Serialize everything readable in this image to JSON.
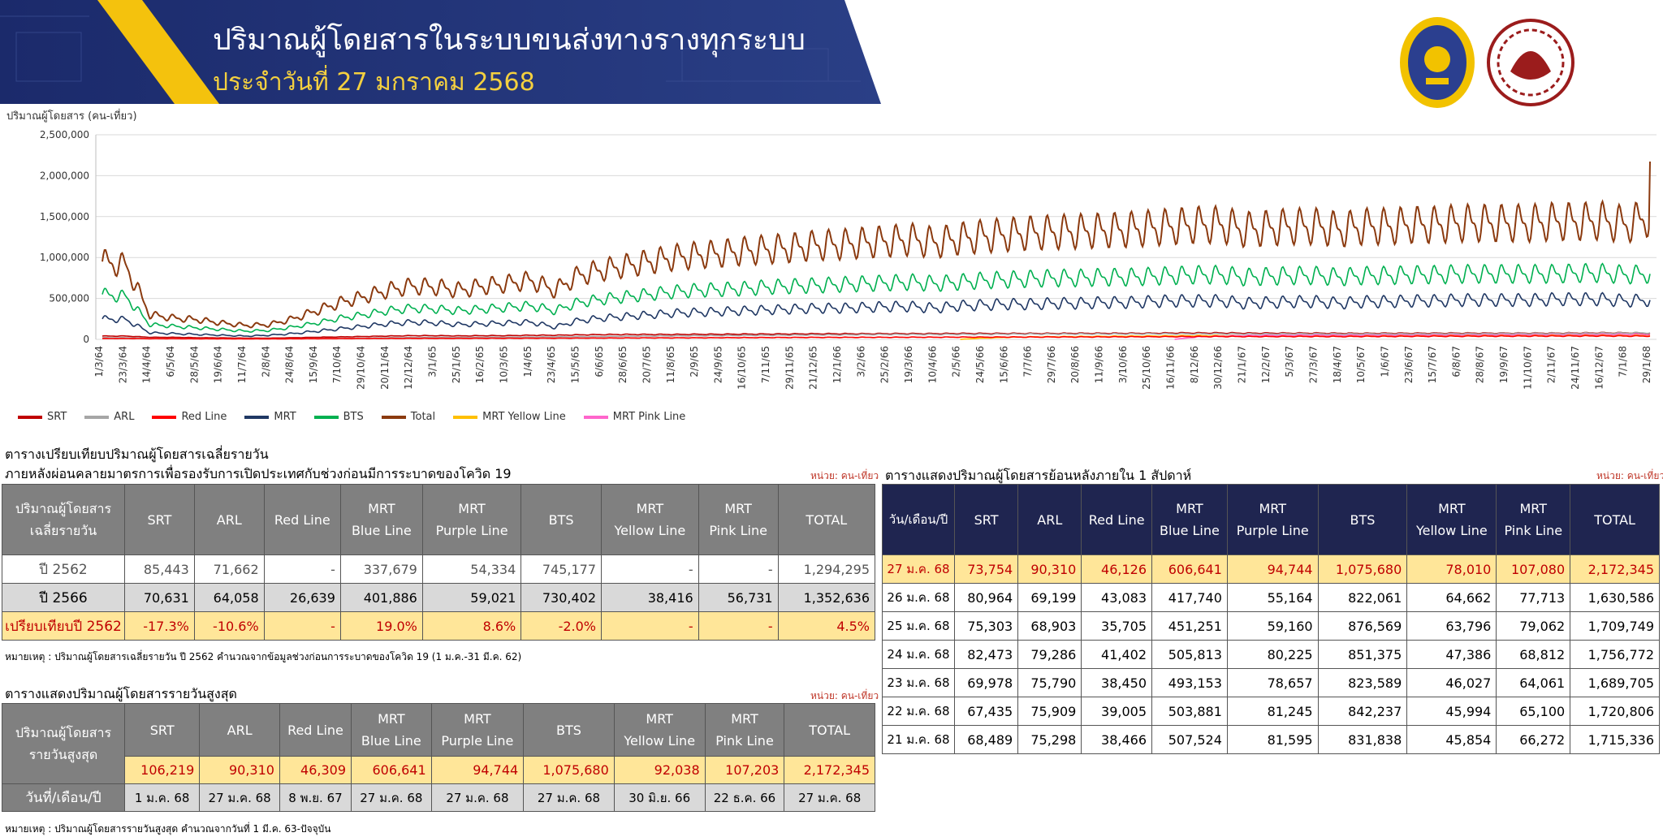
{
  "header": {
    "title": "ปริมาณผู้โดยสารในระบบขนส่งทางรางทุกระบบ",
    "subtitle": "ประจำวันที่ 27 มกราคม 2568"
  },
  "chart_data": {
    "type": "line",
    "ylabel": "ปริมาณผู้โดยสาร (คน-เที่ยว)",
    "ylim": [
      0,
      2500000
    ],
    "yticks": [
      "0",
      "500,000",
      "1,000,000",
      "1,500,000",
      "2,000,000",
      "2,500,000"
    ],
    "x": [
      "1/3/64",
      "23/3/64",
      "14/4/64",
      "6/5/64",
      "28/5/64",
      "19/6/64",
      "11/7/64",
      "2/8/64",
      "24/8/64",
      "15/9/64",
      "7/10/64",
      "29/10/64",
      "20/11/64",
      "12/12/64",
      "3/1/65",
      "25/1/65",
      "16/2/65",
      "10/3/65",
      "1/4/65",
      "23/4/65",
      "15/5/65",
      "6/6/65",
      "28/6/65",
      "20/7/65",
      "11/8/65",
      "2/9/65",
      "24/9/65",
      "16/10/65",
      "7/11/65",
      "29/11/65",
      "21/12/65",
      "12/1/66",
      "3/2/66",
      "25/2/66",
      "19/3/66",
      "10/4/66",
      "2/5/66",
      "24/5/66",
      "15/6/66",
      "7/7/66",
      "29/7/66",
      "20/8/66",
      "11/9/66",
      "3/10/66",
      "25/10/66",
      "16/11/66",
      "8/12/66",
      "30/12/66",
      "21/1/67",
      "12/2/67",
      "5/3/67",
      "27/3/67",
      "18/4/67",
      "10/5/67",
      "1/6/67",
      "23/6/67",
      "15/7/67",
      "6/8/67",
      "28/8/67",
      "19/9/67",
      "11/10/67",
      "2/11/67",
      "24/11/67",
      "16/12/67",
      "7/1/68",
      "29/1/68"
    ],
    "series": [
      {
        "name": "SRT",
        "color": "#c00000",
        "level": [
          40000,
          40000,
          25000,
          25000,
          20000,
          18000,
          15000,
          15000,
          20000,
          25000,
          30000,
          35000,
          40000,
          45000,
          45000,
          42000,
          45000,
          45000,
          50000,
          50000,
          55000,
          58000,
          60000,
          60000,
          60000,
          62000,
          62000,
          64000,
          65000,
          66000,
          68000,
          68000,
          68000,
          70000,
          70000,
          70000,
          72000,
          72000,
          72000,
          72000,
          72000,
          74000,
          74000,
          74000,
          75000,
          78000,
          78000,
          78000,
          76000,
          76000,
          76000,
          76000,
          74000,
          74000,
          75000,
          75000,
          76000,
          76000,
          76000,
          76000,
          76000,
          76000,
          78000,
          80000,
          80000,
          75000
        ],
        "amp": 0.12
      },
      {
        "name": "ARL",
        "color": "#a6a6a6",
        "level": [
          20000,
          20000,
          12000,
          10000,
          9000,
          8000,
          7000,
          7000,
          8000,
          10000,
          12000,
          15000,
          20000,
          22000,
          24000,
          22000,
          25000,
          25000,
          28000,
          30000,
          32000,
          35000,
          38000,
          40000,
          42000,
          44000,
          46000,
          48000,
          50000,
          52000,
          55000,
          55000,
          58000,
          60000,
          60000,
          60000,
          62000,
          62000,
          64000,
          65000,
          65000,
          66000,
          66000,
          66000,
          68000,
          68000,
          68000,
          68000,
          66000,
          66000,
          68000,
          68000,
          66000,
          68000,
          68000,
          68000,
          70000,
          70000,
          70000,
          72000,
          72000,
          72000,
          74000,
          76000,
          78000,
          80000
        ],
        "amp": 0.15
      },
      {
        "name": "Red Line",
        "color": "#ff0000",
        "level": [
          10000,
          10000,
          8000,
          8000,
          7000,
          7000,
          6000,
          6000,
          7000,
          8000,
          9000,
          10000,
          11000,
          12000,
          12000,
          12000,
          13000,
          13000,
          14000,
          14000,
          15000,
          16000,
          17000,
          18000,
          18000,
          19000,
          20000,
          21000,
          22000,
          23000,
          24000,
          24000,
          25000,
          25000,
          26000,
          26000,
          27000,
          27000,
          28000,
          28000,
          29000,
          29000,
          30000,
          31000,
          32000,
          33000,
          34000,
          35000,
          34000,
          34000,
          35000,
          35000,
          34000,
          36000,
          36000,
          37000,
          38000,
          38000,
          39000,
          39000,
          40000,
          40000,
          41000,
          42000,
          40000,
          40000
        ],
        "amp": 0.2
      },
      {
        "name": "MRT",
        "color": "#203864",
        "level": [
          250000,
          240000,
          80000,
          70000,
          60000,
          50000,
          40000,
          50000,
          70000,
          100000,
          130000,
          160000,
          190000,
          210000,
          200000,
          180000,
          190000,
          200000,
          210000,
          150000,
          230000,
          260000,
          280000,
          300000,
          320000,
          330000,
          340000,
          350000,
          360000,
          370000,
          380000,
          380000,
          390000,
          400000,
          400000,
          380000,
          410000,
          420000,
          430000,
          430000,
          440000,
          440000,
          450000,
          450000,
          460000,
          470000,
          470000,
          470000,
          440000,
          450000,
          460000,
          460000,
          440000,
          460000,
          460000,
          470000,
          470000,
          480000,
          480000,
          480000,
          480000,
          490000,
          490000,
          490000,
          470000,
          480000
        ],
        "amp": 0.25
      },
      {
        "name": "BTS",
        "color": "#00b050",
        "level": [
          550000,
          520000,
          180000,
          160000,
          140000,
          120000,
          100000,
          110000,
          150000,
          200000,
          260000,
          300000,
          350000,
          380000,
          370000,
          350000,
          370000,
          390000,
          410000,
          350000,
          450000,
          490000,
          520000,
          550000,
          580000,
          600000,
          610000,
          620000,
          640000,
          650000,
          660000,
          670000,
          680000,
          690000,
          700000,
          680000,
          700000,
          720000,
          730000,
          740000,
          750000,
          750000,
          760000,
          760000,
          770000,
          780000,
          790000,
          790000,
          760000,
          770000,
          780000,
          780000,
          760000,
          780000,
          780000,
          790000,
          790000,
          800000,
          800000,
          800000,
          800000,
          800000,
          810000,
          810000,
          790000,
          800000
        ],
        "amp": 0.22
      },
      {
        "name": "Total",
        "color": "#8b3a0f",
        "level": [
          950000,
          900000,
          300000,
          260000,
          240000,
          200000,
          170000,
          180000,
          250000,
          350000,
          450000,
          520000,
          600000,
          650000,
          640000,
          600000,
          650000,
          680000,
          720000,
          600000,
          780000,
          850000,
          900000,
          950000,
          1000000,
          1030000,
          1050000,
          1080000,
          1100000,
          1120000,
          1150000,
          1160000,
          1180000,
          1200000,
          1220000,
          1180000,
          1230000,
          1260000,
          1280000,
          1300000,
          1310000,
          1320000,
          1330000,
          1340000,
          1360000,
          1380000,
          1400000,
          1400000,
          1340000,
          1360000,
          1380000,
          1380000,
          1340000,
          1380000,
          1380000,
          1400000,
          1400000,
          1420000,
          1420000,
          1420000,
          1420000,
          1440000,
          1440000,
          1450000,
          1400000,
          1500000
        ],
        "amp": 0.25
      },
      {
        "name": "MRT Yellow Line",
        "color": "#ffc000",
        "level": [
          0,
          0,
          0,
          0,
          0,
          0,
          0,
          0,
          0,
          0,
          0,
          0,
          0,
          0,
          0,
          0,
          0,
          0,
          0,
          0,
          0,
          0,
          0,
          0,
          0,
          0,
          0,
          0,
          0,
          0,
          0,
          0,
          0,
          0,
          0,
          0,
          0,
          15000,
          25000,
          30000,
          32000,
          34000,
          36000,
          38000,
          40000,
          42000,
          44000,
          45000,
          43000,
          44000,
          45000,
          45000,
          43000,
          45000,
          46000,
          46000,
          47000,
          47000,
          48000,
          48000,
          48000,
          49000,
          50000,
          50000,
          48000,
          50000
        ],
        "amp": 0.2
      },
      {
        "name": "MRT Pink Line",
        "color": "#ff66cc",
        "level": [
          0,
          0,
          0,
          0,
          0,
          0,
          0,
          0,
          0,
          0,
          0,
          0,
          0,
          0,
          0,
          0,
          0,
          0,
          0,
          0,
          0,
          0,
          0,
          0,
          0,
          0,
          0,
          0,
          0,
          0,
          0,
          0,
          0,
          0,
          0,
          0,
          0,
          0,
          0,
          0,
          0,
          0,
          0,
          0,
          0,
          0,
          30000,
          40000,
          45000,
          48000,
          50000,
          52000,
          50000,
          53000,
          54000,
          55000,
          56000,
          57000,
          58000,
          58000,
          59000,
          60000,
          61000,
          62000,
          60000,
          62000
        ],
        "amp": 0.2
      }
    ]
  },
  "compare": {
    "title1": "ตารางเปรียบเทียบปริมาณผู้โดยสารเฉลี่ยรายวัน",
    "title2": "ภายหลังผ่อนคลายมาตรการเพื่อรองรับการเปิดประเทศกับช่วงก่อนมีการระบาดของโควิด 19",
    "unit": "หน่วย: คน-เที่ยว",
    "corner": [
      "ปริมาณผู้โดยสาร",
      "เฉลี่ยรายวัน"
    ],
    "headers": [
      [
        "SRT"
      ],
      [
        "ARL"
      ],
      [
        "Red Line"
      ],
      [
        "MRT",
        "Blue Line"
      ],
      [
        "MRT",
        "Purple Line"
      ],
      [
        "BTS"
      ],
      [
        "MRT",
        "Yellow Line"
      ],
      [
        "MRT",
        "Pink Line"
      ],
      [
        "TOTAL"
      ]
    ],
    "rows": [
      {
        "label": "ปี 2562",
        "values": [
          "85,443",
          "71,662",
          "-",
          "337,679",
          "54,334",
          "745,177",
          "-",
          "-",
          "1,294,295"
        ]
      },
      {
        "label": "ปี 2566",
        "values": [
          "70,631",
          "64,058",
          "26,639",
          "401,886",
          "59,021",
          "730,402",
          "38,416",
          "56,731",
          "1,352,636"
        ]
      },
      {
        "label": "เปรียบเทียบปี 2562",
        "values": [
          "-17.3%",
          "-10.6%",
          "-",
          "19.0%",
          "8.6%",
          "-2.0%",
          "-",
          "-",
          "4.5%"
        ]
      }
    ],
    "note": "หมายเหตุ : ปริมาณผู้โดยสารเฉลี่ยรายวัน ปี 2562 คำนวณจากข้อมูลช่วงก่อนการระบาดของโควิด 19 (1 ม.ค.-31 มี.ค. 62)"
  },
  "max": {
    "title": "ตารางแสดงปริมาณผู้โดยสารรายวันสูงสุด",
    "unit": "หน่วย: คน-เที่ยว",
    "corner": [
      "ปริมาณผู้โดยสาร",
      "รายวันสูงสุด"
    ],
    "values": [
      "106,219",
      "90,310",
      "46,309",
      "606,641",
      "94,744",
      "1,075,680",
      "92,038",
      "107,203",
      "2,172,345"
    ],
    "date_label": "วันที่/เดือน/ปี",
    "dates": [
      "1 ม.ค. 68",
      "27 ม.ค. 68",
      "8 พ.ย. 67",
      "27 ม.ค. 68",
      "27 ม.ค. 68",
      "27 ม.ค. 68",
      "30 มิ.ย. 66",
      "22 ธ.ค. 66",
      "27 ม.ค. 68"
    ],
    "note": "หมายเหตุ : ปริมาณผู้โดยสารรายวันสูงสุด คำนวณจากวันที่ 1 มี.ค. 63-ปัจจุบัน"
  },
  "week": {
    "title": "ตารางแสดงปริมาณผู้โดยสารย้อนหลังภายใน 1 สัปดาห์",
    "unit": "หน่วย: คน-เที่ยว",
    "corner": "วัน/เดือน/ปี",
    "rows": [
      {
        "date": "27 ม.ค. 68",
        "values": [
          "73,754",
          "90,310",
          "46,126",
          "606,641",
          "94,744",
          "1,075,680",
          "78,010",
          "107,080",
          "2,172,345"
        ]
      },
      {
        "date": "26 ม.ค. 68",
        "values": [
          "80,964",
          "69,199",
          "43,083",
          "417,740",
          "55,164",
          "822,061",
          "64,662",
          "77,713",
          "1,630,586"
        ]
      },
      {
        "date": "25 ม.ค. 68",
        "values": [
          "75,303",
          "68,903",
          "35,705",
          "451,251",
          "59,160",
          "876,569",
          "63,796",
          "79,062",
          "1,709,749"
        ]
      },
      {
        "date": "24 ม.ค. 68",
        "values": [
          "82,473",
          "79,286",
          "41,402",
          "505,813",
          "80,225",
          "851,375",
          "47,386",
          "68,812",
          "1,756,772"
        ]
      },
      {
        "date": "23 ม.ค. 68",
        "values": [
          "69,978",
          "75,790",
          "38,450",
          "493,153",
          "78,657",
          "823,589",
          "46,027",
          "64,061",
          "1,689,705"
        ]
      },
      {
        "date": "22 ม.ค. 68",
        "values": [
          "67,435",
          "75,909",
          "39,005",
          "503,881",
          "81,245",
          "842,237",
          "45,994",
          "65,100",
          "1,720,806"
        ]
      },
      {
        "date": "21 ม.ค. 68",
        "values": [
          "68,489",
          "75,298",
          "38,466",
          "507,524",
          "81,595",
          "831,838",
          "45,854",
          "66,272",
          "1,715,336"
        ]
      }
    ]
  }
}
